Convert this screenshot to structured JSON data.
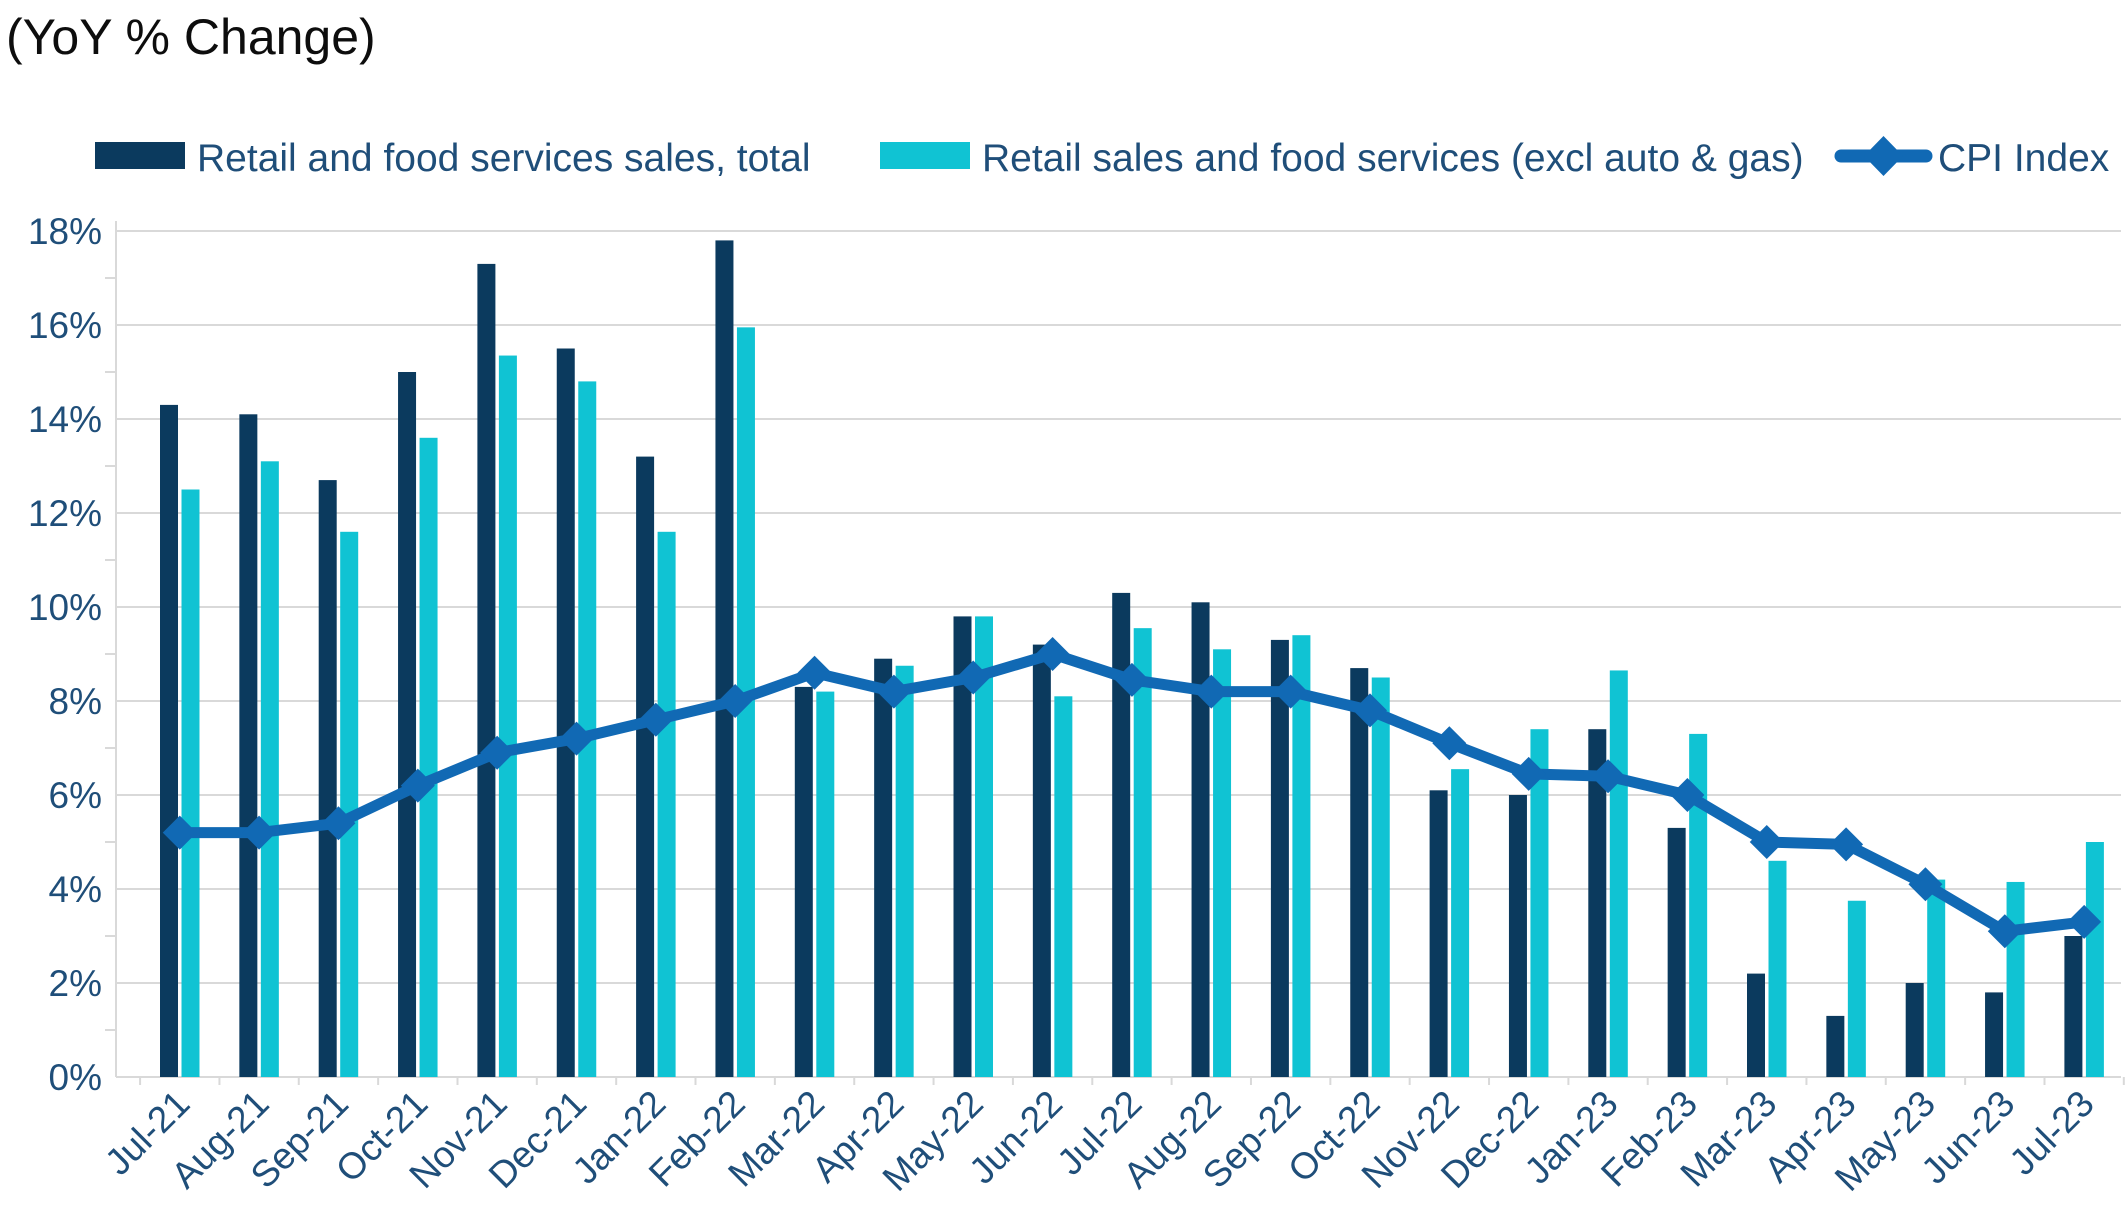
{
  "title": "(YoY % Change)",
  "legend": [
    {
      "label": "Retail and food services sales, total",
      "color": "#0b3a5e",
      "type": "swatch"
    },
    {
      "label": "Retail sales and food services (excl auto & gas)",
      "color": "#10c3d3",
      "type": "swatch"
    },
    {
      "label": "CPI Index",
      "color": "#1169b4",
      "type": "line-diamond"
    }
  ],
  "colors": {
    "bar_total": "#0b3a5e",
    "bar_ex_auto_gas": "#10c3d3",
    "cpi_line": "#1169b4",
    "gridline": "#d9d9d9",
    "axis_text": "#1f4e79",
    "title_text": "#0d0d0d",
    "background": "#ffffff"
  },
  "chart_data": {
    "type": "bar",
    "subtype": "grouped-bars-with-line-overlay",
    "title": "(YoY % Change)",
    "xlabel": "",
    "ylabel": "",
    "y_axis": {
      "min": 0,
      "max": 18,
      "step": 2,
      "minor_step": 1,
      "format": "percent",
      "tick_labels": [
        "0%",
        "2%",
        "4%",
        "6%",
        "8%",
        "10%",
        "12%",
        "14%",
        "16%",
        "18%"
      ]
    },
    "grid": true,
    "legend_position": "top",
    "categories": [
      "Jul-21",
      "Aug-21",
      "Sep-21",
      "Oct-21",
      "Nov-21",
      "Dec-21",
      "Jan-22",
      "Feb-22",
      "Mar-22",
      "Apr-22",
      "May-22",
      "Jun-22",
      "Jul-22",
      "Aug-22",
      "Sep-22",
      "Oct-22",
      "Nov-22",
      "Dec-22",
      "Jan-23",
      "Feb-23",
      "Mar-23",
      "Apr-23",
      "May-23",
      "Jun-23",
      "Jul-23"
    ],
    "series": [
      {
        "name": "Retail and food services sales, total",
        "type": "bar",
        "color": "#0b3a5e",
        "values": [
          14.3,
          14.1,
          12.7,
          15.0,
          17.3,
          15.5,
          13.2,
          17.8,
          8.3,
          8.9,
          9.8,
          9.2,
          10.3,
          10.1,
          9.3,
          8.7,
          6.1,
          6.0,
          7.4,
          5.3,
          2.2,
          1.3,
          2.0,
          1.8,
          3.0
        ]
      },
      {
        "name": "Retail sales and food services (excl auto & gas)",
        "type": "bar",
        "color": "#10c3d3",
        "values": [
          12.5,
          13.1,
          11.6,
          13.6,
          15.35,
          14.8,
          11.6,
          15.95,
          8.2,
          8.75,
          9.8,
          8.1,
          9.55,
          9.1,
          9.4,
          8.5,
          6.55,
          7.4,
          8.65,
          7.3,
          4.6,
          3.75,
          4.2,
          4.15,
          5.0
        ]
      },
      {
        "name": "CPI Index",
        "type": "line",
        "marker": "diamond",
        "color": "#1169b4",
        "values": [
          5.2,
          5.2,
          5.4,
          6.2,
          6.9,
          7.2,
          7.6,
          8.0,
          8.6,
          8.2,
          8.5,
          9.0,
          8.45,
          8.2,
          8.2,
          7.8,
          7.1,
          6.45,
          6.4,
          6.0,
          5.0,
          4.95,
          4.1,
          3.1,
          3.3
        ]
      }
    ]
  }
}
